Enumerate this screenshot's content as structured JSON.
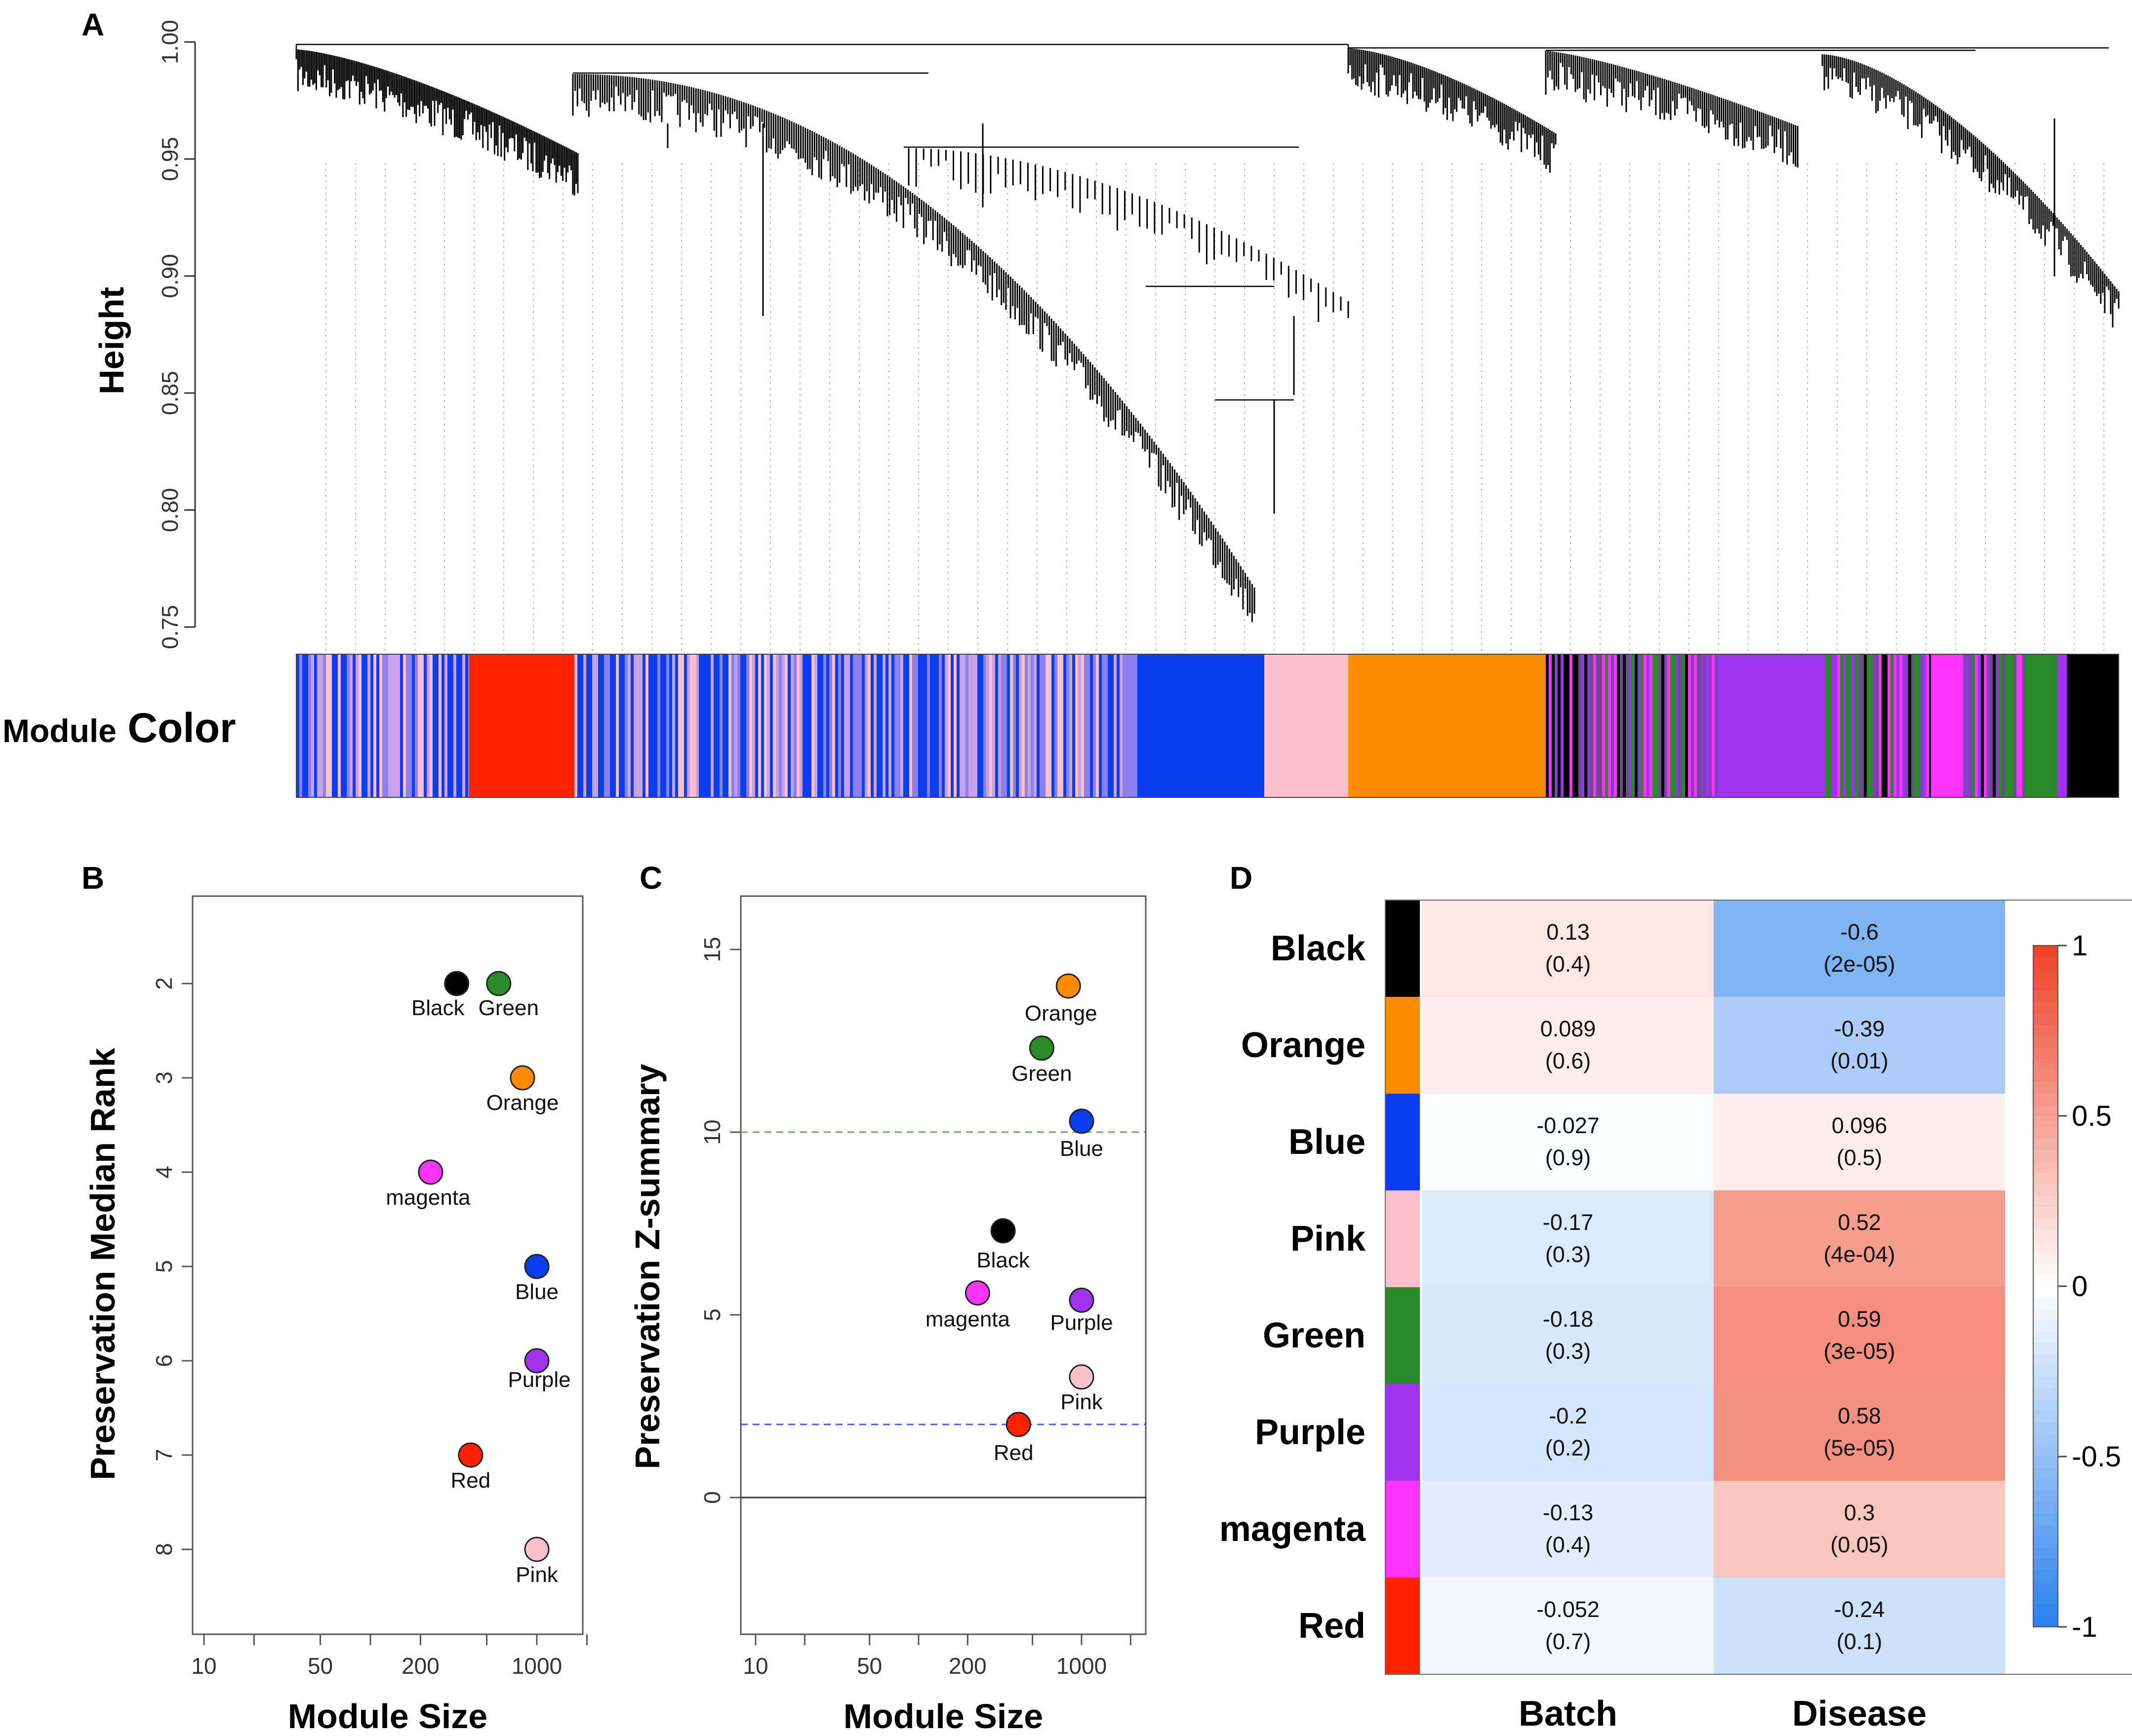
{
  "panels": {
    "a": "A",
    "b": "B",
    "c": "C",
    "d": "D"
  },
  "colors": {
    "black": "#000000",
    "green": "#2a8a2a",
    "orange": "#ff8c00",
    "magenta": "#ff33ff",
    "blue": "#0a3cf0",
    "purple": "#a033ef",
    "red": "#ff2200",
    "pink": "#fbc0cb"
  },
  "chart_data": [
    {
      "panel": "A",
      "type": "dendrogram",
      "ylabel": "Height",
      "yticks": [
        "0.75",
        "0.80",
        "0.85",
        "0.90",
        "0.95",
        "1.00"
      ],
      "ylim": [
        0.75,
        1.0
      ],
      "color_bar_label_1": "Module",
      "color_bar_label_2": "Color",
      "module_order": [
        "mixed",
        "red",
        "mixed",
        "blue",
        "pink",
        "orange",
        "mixed",
        "purple",
        "mixed",
        "magenta",
        "mixed",
        "green",
        "purple",
        "black"
      ]
    },
    {
      "panel": "B",
      "type": "scatter",
      "xlabel": "Module Size",
      "ylabel": "Preservation Median Rank",
      "x_scale": "log",
      "xticks": [
        "10",
        "50",
        "200",
        "1000"
      ],
      "yticks": [
        "2",
        "3",
        "4",
        "5",
        "6",
        "7",
        "8"
      ],
      "y_reversed": true,
      "points": [
        {
          "label": "Black",
          "x": 330,
          "y": 2,
          "color": "black"
        },
        {
          "label": "Green",
          "x": 590,
          "y": 2,
          "color": "green"
        },
        {
          "label": "Orange",
          "x": 820,
          "y": 3,
          "color": "orange"
        },
        {
          "label": "magenta",
          "x": 230,
          "y": 4,
          "color": "magenta"
        },
        {
          "label": "Blue",
          "x": 1000,
          "y": 5,
          "color": "blue"
        },
        {
          "label": "Purple",
          "x": 1000,
          "y": 6,
          "color": "purple"
        },
        {
          "label": "Red",
          "x": 400,
          "y": 7,
          "color": "red"
        },
        {
          "label": "Pink",
          "x": 1000,
          "y": 8,
          "color": "pink"
        }
      ]
    },
    {
      "panel": "C",
      "type": "scatter",
      "xlabel": "Module Size",
      "ylabel": "Preservation Z-summary",
      "x_scale": "log",
      "xticks": [
        "10",
        "50",
        "200",
        "1000"
      ],
      "yticks": [
        "0",
        "5",
        "10",
        "15"
      ],
      "ylim": [
        -4,
        16.5
      ],
      "thresholds": [
        10,
        2
      ],
      "points": [
        {
          "label": "Orange",
          "x": 830,
          "y": 14.0,
          "color": "orange"
        },
        {
          "label": "Green",
          "x": 570,
          "y": 12.3,
          "color": "green"
        },
        {
          "label": "Blue",
          "x": 1000,
          "y": 10.3,
          "color": "blue"
        },
        {
          "label": "Black",
          "x": 330,
          "y": 7.3,
          "color": "black"
        },
        {
          "label": "magenta",
          "x": 230,
          "y": 5.6,
          "color": "magenta"
        },
        {
          "label": "Purple",
          "x": 1000,
          "y": 5.4,
          "color": "purple"
        },
        {
          "label": "Pink",
          "x": 1000,
          "y": 3.3,
          "color": "pink"
        },
        {
          "label": "Red",
          "x": 410,
          "y": 2.0,
          "color": "red"
        }
      ]
    },
    {
      "panel": "D",
      "type": "heatmap",
      "columns": [
        "Batch",
        "Disease"
      ],
      "rows": [
        {
          "name": "Black",
          "color": "black",
          "batch": {
            "value": "0.13",
            "p": "(0.4)",
            "r": 0.13
          },
          "disease": {
            "value": "-0.6",
            "p": "(2e-05)",
            "r": -0.6
          }
        },
        {
          "name": "Orange",
          "color": "orange",
          "batch": {
            "value": "0.089",
            "p": "(0.6)",
            "r": 0.089
          },
          "disease": {
            "value": "-0.39",
            "p": "(0.01)",
            "r": -0.39
          }
        },
        {
          "name": "Blue",
          "color": "blue",
          "batch": {
            "value": "-0.027",
            "p": "(0.9)",
            "r": -0.027
          },
          "disease": {
            "value": "0.096",
            "p": "(0.5)",
            "r": 0.096
          }
        },
        {
          "name": "Pink",
          "color": "pink",
          "batch": {
            "value": "-0.17",
            "p": "(0.3)",
            "r": -0.17
          },
          "disease": {
            "value": "0.52",
            "p": "(4e-04)",
            "r": 0.52
          }
        },
        {
          "name": "Green",
          "color": "green",
          "batch": {
            "value": "-0.18",
            "p": "(0.3)",
            "r": -0.18
          },
          "disease": {
            "value": "0.59",
            "p": "(3e-05)",
            "r": 0.59
          }
        },
        {
          "name": "Purple",
          "color": "purple",
          "batch": {
            "value": "-0.2",
            "p": "(0.2)",
            "r": -0.2
          },
          "disease": {
            "value": "0.58",
            "p": "(5e-05)",
            "r": 0.58
          }
        },
        {
          "name": "magenta",
          "color": "magenta",
          "batch": {
            "value": "-0.13",
            "p": "(0.4)",
            "r": -0.13
          },
          "disease": {
            "value": "0.3",
            "p": "(0.05)",
            "r": 0.3
          }
        },
        {
          "name": "Red",
          "color": "red",
          "batch": {
            "value": "-0.052",
            "p": "(0.7)",
            "r": -0.052
          },
          "disease": {
            "value": "-0.24",
            "p": "(0.1)",
            "r": -0.24
          }
        }
      ],
      "colorbar": {
        "range": [
          -1,
          1
        ],
        "ticks": [
          "1",
          "0.5",
          "0",
          "-0.5",
          "-1"
        ]
      }
    }
  ]
}
